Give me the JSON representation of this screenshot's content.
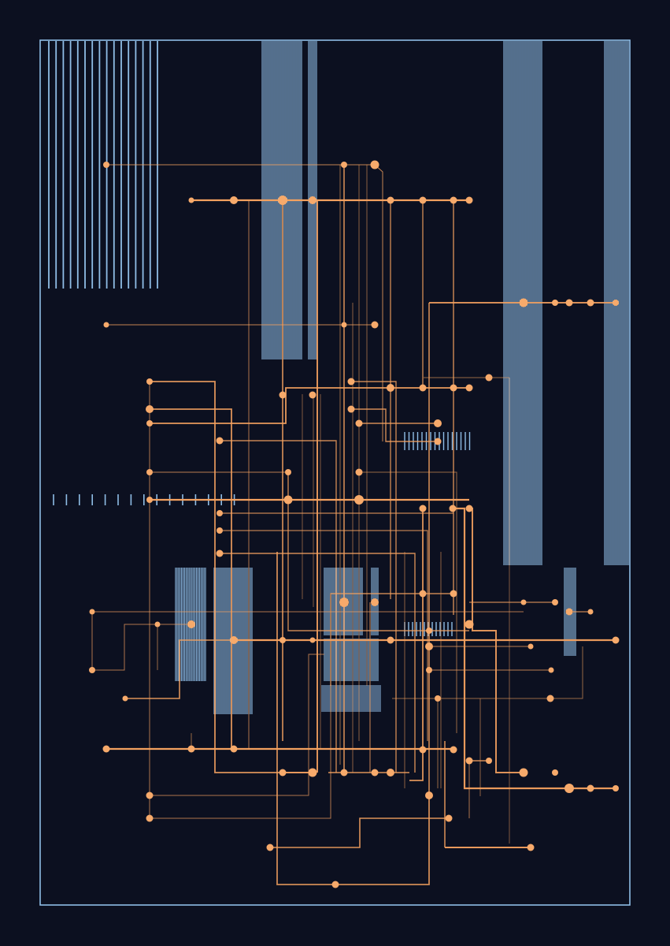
{
  "artwork": {
    "title": "",
    "palette": {
      "background": "#0c1020",
      "frame": "#8fbde6",
      "stripes": "#8fbde6",
      "wire": "#f4a15f",
      "node": "#f7aa6b"
    },
    "stripe_blocks": 19,
    "wire_paths": 70,
    "nodes": 90
  }
}
